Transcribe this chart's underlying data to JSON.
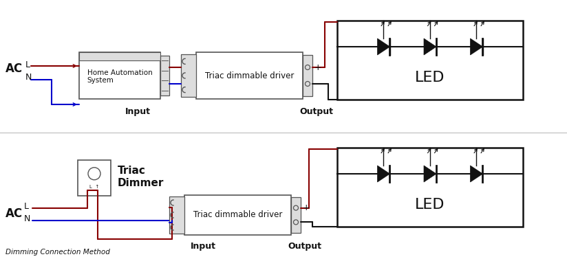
{
  "bg_color": "#ffffff",
  "diagram1": {
    "ac_label": "AC",
    "ac_L_label": "L",
    "ac_N_label": "N",
    "home_box_label": "Home Automation\nSystem",
    "driver_label": "Triac dimmable driver",
    "output_label": "Output",
    "input_label": "Input",
    "led_label": "LED",
    "plus_label": "+",
    "minus_label": "-"
  },
  "diagram2": {
    "ac_label": "AC",
    "ac_L_label": "L",
    "ac_N_label": "N",
    "triac_line1": "Triac",
    "triac_line2": "Dimmer",
    "driver_label": "Triac dimmable driver",
    "output_label": "Output",
    "input_label": "Input",
    "led_label": "LED",
    "plus_label": "+",
    "minus_label": "-"
  },
  "footer_label": "Dimming Connection Method",
  "colors": {
    "red": "#cc2200",
    "blue": "#0000cc",
    "dark_red": "#880000",
    "black": "#111111",
    "dark_gray": "#555555",
    "mid_gray": "#888888",
    "light_gray": "#dddddd",
    "box_fill": "#f8f8f8"
  }
}
